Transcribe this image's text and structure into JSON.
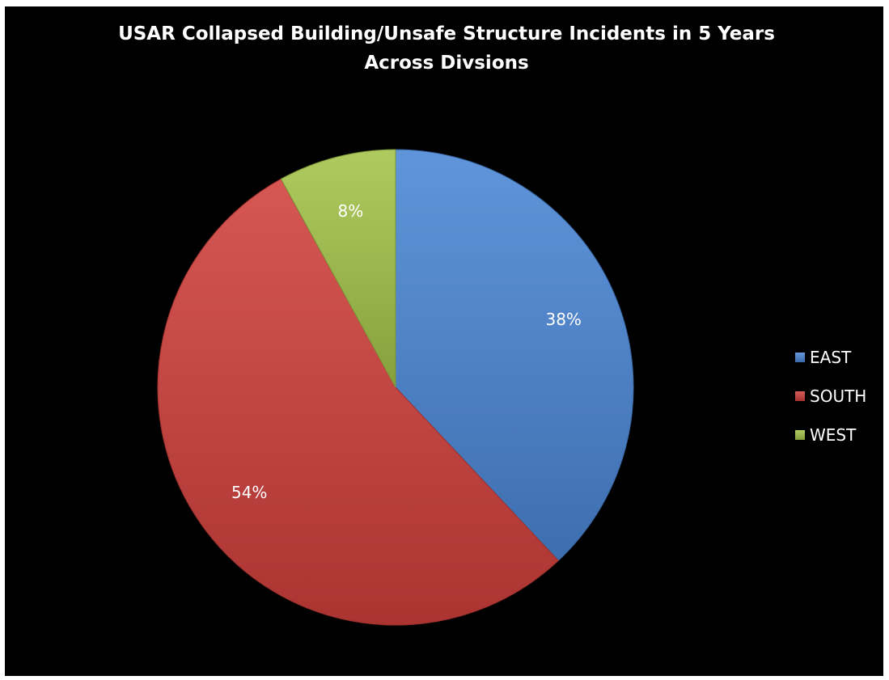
{
  "chart_data": {
    "type": "pie",
    "title_lines": [
      "USAR Collapsed Building/Unsafe Structure Incidents in 5 Years",
      "Across Divsions"
    ],
    "slices": [
      {
        "name": "EAST",
        "value": 38,
        "label": "38%",
        "color": "#4a86d6"
      },
      {
        "name": "SOUTH",
        "value": 54,
        "label": "54%",
        "color": "#d0403c"
      },
      {
        "name": "WEST",
        "value": 8,
        "label": "8%",
        "color": "#a4c449"
      }
    ],
    "legend_position": "right"
  }
}
